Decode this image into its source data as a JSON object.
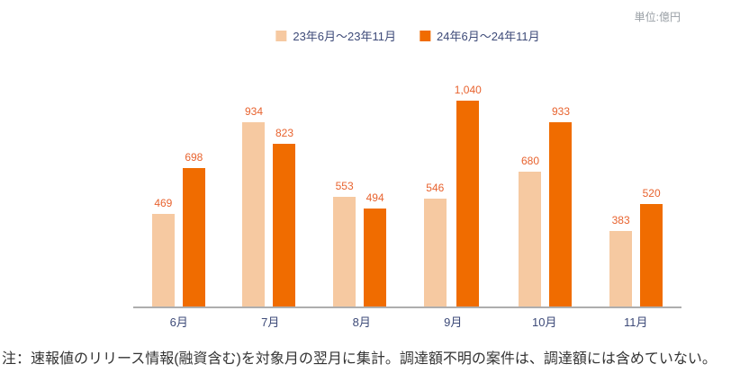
{
  "unit_label": "単位:億円",
  "note": "注：速報値のリリース情報(融資含む)を対象月の翌月に集計。調達額不明の案件は、調達額には含めていない。",
  "chart_data": {
    "type": "bar",
    "title": "",
    "xlabel": "",
    "ylabel": "",
    "categories": [
      "6月",
      "7月",
      "8月",
      "9月",
      "10月",
      "11月"
    ],
    "series": [
      {
        "name": "23年6月〜23年11月",
        "color": "#f6c9a1",
        "values": [
          469,
          934,
          553,
          546,
          680,
          383
        ]
      },
      {
        "name": "24年6月〜24年11月",
        "color": "#f06c00",
        "values": [
          698,
          823,
          494,
          1040,
          933,
          520
        ]
      }
    ],
    "value_label_color": "#e8632f",
    "axis_label_color": "#3d4a78",
    "ylim": [
      0,
      1100
    ],
    "grid": false,
    "legend_position": "top"
  }
}
